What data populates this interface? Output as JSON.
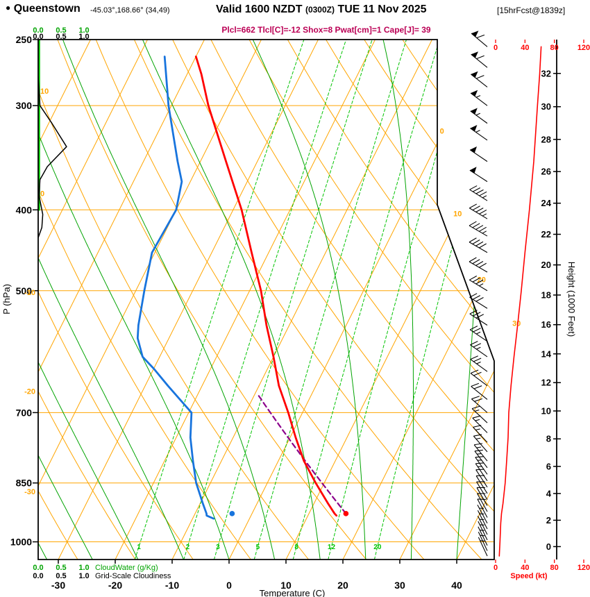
{
  "header": {
    "station_bullet": "●",
    "station": "Queenstown",
    "coords": "-45.03°,168.66° (34,49)",
    "valid_prefix": "Valid 1600 NZDT",
    "valid_zulu": "(0300Z)",
    "valid_suffix": "TUE 11 Nov 2025",
    "fcst_tag": "[15hrFcst@1839z]",
    "params": "Plcl=662 Tlcl[C]=-12 Shox=8 Pwat[cm]=1 Cape[J]= 39"
  },
  "axes": {
    "pressure": {
      "label": "P (hPa)",
      "ticks": [
        250,
        300,
        400,
        500,
        700,
        850,
        1000
      ]
    },
    "temperature": {
      "label": "Temperature (C)",
      "ticks": [
        -30,
        -20,
        -10,
        0,
        10,
        20,
        30,
        40
      ]
    },
    "height": {
      "label": "Height (1000 Feet)",
      "ticks": [
        0,
        2,
        4,
        6,
        8,
        10,
        12,
        14,
        16,
        18,
        20,
        22,
        24,
        26,
        28,
        30,
        32
      ]
    },
    "speed": {
      "label": "Speed (kt)",
      "ticks": [
        0,
        40,
        80,
        120
      ]
    },
    "cloudwater": {
      "label": "CloudWater (g/Kg)",
      "ticks": [
        "0.0",
        "0.5",
        "1.0"
      ]
    },
    "cloudiness": {
      "label": "Grid-Scale Cloudiness",
      "ticks": [
        "0.0",
        "0.5",
        "1.0"
      ]
    }
  },
  "chart_data": {
    "type": "skewt-logp-sounding",
    "pressure_hPa_range": [
      250,
      1050
    ],
    "temperature_C": [
      [
        930,
        15
      ],
      [
        925,
        14.5
      ],
      [
        900,
        12.5
      ],
      [
        850,
        8.5
      ],
      [
        800,
        4.5
      ],
      [
        750,
        1
      ],
      [
        700,
        -2.5
      ],
      [
        650,
        -6.5
      ],
      [
        600,
        -10
      ],
      [
        550,
        -14
      ],
      [
        500,
        -18
      ],
      [
        450,
        -23
      ],
      [
        400,
        -28.5
      ],
      [
        350,
        -35.5
      ],
      [
        300,
        -43.5
      ],
      [
        275,
        -47.5
      ],
      [
        262,
        -50
      ]
    ],
    "dewpoint_C": [
      [
        938,
        -6.3
      ],
      [
        930,
        -7.8
      ],
      [
        925,
        -8
      ],
      [
        900,
        -9.5
      ],
      [
        850,
        -12.5
      ],
      [
        800,
        -15
      ],
      [
        750,
        -17.5
      ],
      [
        700,
        -19.5
      ],
      [
        650,
        -26
      ],
      [
        620,
        -30
      ],
      [
        600,
        -33
      ],
      [
        570,
        -35.5
      ],
      [
        550,
        -36.5
      ],
      [
        500,
        -38.5
      ],
      [
        450,
        -40.5
      ],
      [
        400,
        -40
      ],
      [
        370,
        -41.5
      ],
      [
        350,
        -44
      ],
      [
        300,
        -50.5
      ],
      [
        262,
        -55.5
      ]
    ],
    "parcel": {
      "p_surface_hPa": 925,
      "t_surface_C": 16.5,
      "p_lcl_hPa": 662,
      "t_lcl_C": -12
    },
    "surface_markers": {
      "temperature": {
        "p": 925,
        "t": 16.5
      },
      "dewpoint": {
        "p": 925,
        "t": -3.5
      }
    },
    "wind_kt_dir": [
      [
        255,
        62,
        310
      ],
      [
        270,
        60,
        309
      ],
      [
        285,
        58,
        308
      ],
      [
        300,
        57,
        307
      ],
      [
        315,
        55,
        306
      ],
      [
        330,
        54,
        305
      ],
      [
        350,
        52,
        304
      ],
      [
        370,
        50,
        303
      ],
      [
        390,
        47,
        302
      ],
      [
        410,
        45,
        301
      ],
      [
        430,
        43,
        300
      ],
      [
        450,
        40,
        300
      ],
      [
        475,
        38,
        300
      ],
      [
        500,
        35,
        301
      ],
      [
        525,
        32,
        302
      ],
      [
        550,
        30,
        303
      ],
      [
        575,
        27,
        304
      ],
      [
        600,
        25,
        305
      ],
      [
        625,
        23,
        306
      ],
      [
        650,
        21,
        307
      ],
      [
        675,
        19,
        309
      ],
      [
        700,
        18,
        311
      ],
      [
        720,
        17,
        313
      ],
      [
        740,
        17,
        315
      ],
      [
        760,
        16,
        317
      ],
      [
        780,
        16,
        319
      ],
      [
        800,
        15,
        321
      ],
      [
        815,
        14,
        323
      ],
      [
        830,
        14,
        325
      ],
      [
        845,
        13,
        326
      ],
      [
        860,
        12,
        327
      ],
      [
        875,
        11,
        328
      ],
      [
        890,
        11,
        329
      ],
      [
        905,
        10,
        330
      ],
      [
        920,
        9,
        331
      ],
      [
        935,
        8,
        332
      ],
      [
        950,
        7,
        332
      ],
      [
        965,
        7,
        333
      ],
      [
        980,
        6,
        333
      ],
      [
        995,
        6,
        334
      ],
      [
        1010,
        6,
        334
      ],
      [
        1025,
        5,
        335
      ],
      [
        1040,
        5,
        335
      ]
    ],
    "speed_curve_kt": [
      [
        1040,
        5
      ],
      [
        1000,
        6
      ],
      [
        950,
        7
      ],
      [
        925,
        8
      ],
      [
        900,
        10
      ],
      [
        850,
        13
      ],
      [
        800,
        15
      ],
      [
        750,
        17
      ],
      [
        700,
        18
      ],
      [
        650,
        21
      ],
      [
        600,
        25
      ],
      [
        550,
        30
      ],
      [
        500,
        35
      ],
      [
        450,
        40
      ],
      [
        400,
        46
      ],
      [
        350,
        52
      ],
      [
        300,
        57
      ],
      [
        275,
        60
      ],
      [
        255,
        62
      ]
    ],
    "cloudiness_fraction": [
      [
        277,
        0
      ],
      [
        300,
        0.04
      ],
      [
        315,
        0.3
      ],
      [
        336,
        0.62
      ],
      [
        355,
        0.2
      ],
      [
        368,
        0.04
      ],
      [
        385,
        0.02
      ],
      [
        405,
        0.1
      ],
      [
        420,
        0.08
      ],
      [
        432,
        0
      ]
    ],
    "cloudwater_gkg": [
      [
        250,
        0
      ],
      [
        400,
        0
      ]
    ],
    "background": {
      "isotherms_C": {
        "start": -110,
        "end": 40,
        "step": 10
      },
      "isotherm_labels_C": [
        0,
        10,
        20,
        30
      ],
      "dry_adiabats_C": {
        "start": -40,
        "end": 160,
        "step": 10
      },
      "dry_adiabat_labels_C": [
        10,
        0,
        -10,
        -20,
        -30
      ],
      "moist_adiabat_surface_C": [
        -32,
        -24,
        -16,
        -8,
        0,
        8,
        16,
        24,
        32,
        40
      ],
      "mixing_ratio_gkg": [
        1,
        2,
        3,
        5,
        8,
        12,
        20
      ]
    }
  },
  "colors": {
    "background_lines": "#FFA500",
    "moist_adiabat": "#00A300",
    "mixing_ratio": "#00C300",
    "temperature_curve": "#FF0000",
    "dewpoint_curve": "#1874DD",
    "parcel_curve": "#8B008B",
    "wind_barbs": "#000000",
    "speed_curve": "#FF0000",
    "cloudwater_curve": "#00CC00",
    "cloudiness_curve": "#000000",
    "frame": "#000000",
    "params_text": "#BB0055"
  }
}
